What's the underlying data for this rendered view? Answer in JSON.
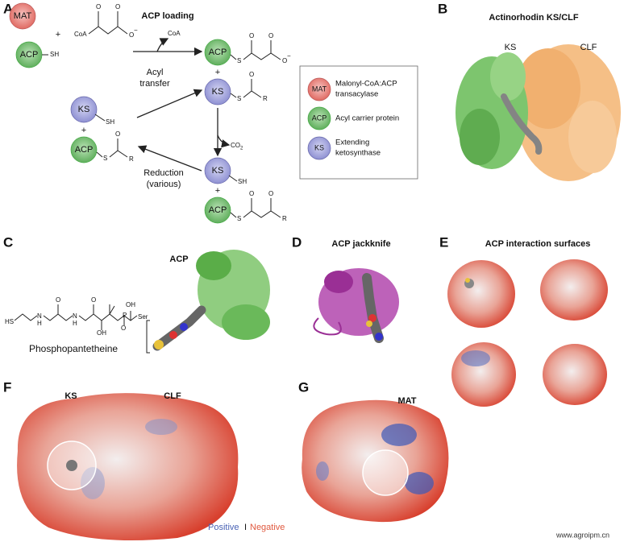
{
  "panel_labels": [
    "A",
    "B",
    "C",
    "D",
    "E",
    "F",
    "G"
  ],
  "panel_a": {
    "title": "ACP loading",
    "mat": "MAT",
    "acp": "ACP",
    "ks": "KS",
    "sh": "SH",
    "plus": "+",
    "coa_reagent": "CoA",
    "coa_released": "CoA",
    "acyl_transfer": [
      "Acyl",
      "transfer"
    ],
    "co2": "CO",
    "co2_sub": "2",
    "reduction": [
      "Reduction",
      "(various)"
    ],
    "atoms": {
      "o": "O",
      "minus": "−",
      "s": "S",
      "r": "R"
    },
    "legend": [
      {
        "abbr": "MAT",
        "label": [
          "Malonyl-CoA:ACP",
          "transacylase"
        ]
      },
      {
        "abbr": "ACP",
        "label": [
          "Acyl carrier protein"
        ]
      },
      {
        "abbr": "KS",
        "label": [
          "Extending",
          "ketosynthase"
        ]
      }
    ]
  },
  "panel_b": {
    "title": "Actinorhodin KS/CLF",
    "ks": "KS",
    "clf": "CLF"
  },
  "panel_c": {
    "title": "ACP",
    "molecule": "Phosphopantetheine",
    "atoms": {
      "hs": "HS",
      "n": "N",
      "h": "H",
      "o": "O",
      "oh": "OH",
      "p": "P",
      "ser": "Ser"
    }
  },
  "panel_d": {
    "title": "ACP jackknife"
  },
  "panel_e": {
    "title": "ACP interaction surfaces"
  },
  "panel_f": {
    "ks": "KS",
    "clf": "CLF",
    "positive": "Positive",
    "separator": "I",
    "negative": "Negative"
  },
  "panel_g": {
    "mat": "MAT"
  },
  "watermark": "www.agroipm.cn"
}
